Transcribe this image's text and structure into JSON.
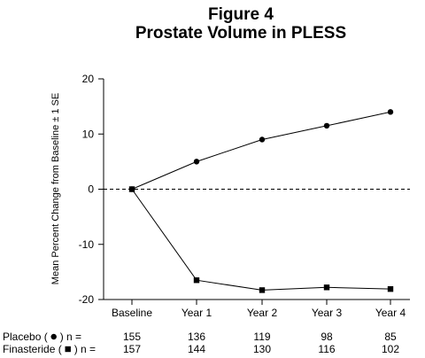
{
  "figure": {
    "title_line1": "Figure 4",
    "title_line2": "Prostate Volume in PLESS"
  },
  "chart_data": {
    "type": "line",
    "title": "Prostate Volume in PLESS",
    "xlabel": "",
    "ylabel": "Mean Percent Change from Baseline  ± 1 SE",
    "categories": [
      "Baseline",
      "Year 1",
      "Year 2",
      "Year 3",
      "Year 4"
    ],
    "ylim": [
      -20,
      20
    ],
    "yticks": [
      20,
      10,
      0,
      -10,
      -20
    ],
    "reference_line": {
      "y": 0,
      "style": "dashed"
    },
    "series": [
      {
        "name": "Placebo",
        "marker": "circle",
        "values": [
          0,
          5,
          9,
          11.5,
          14
        ]
      },
      {
        "name": "Finasteride",
        "marker": "square",
        "values": [
          0,
          -16.5,
          -18.3,
          -17.8,
          -18.1
        ]
      }
    ]
  },
  "n_table": {
    "rows": [
      {
        "label_prefix": "Placebo (",
        "label_suffix": ") n =",
        "marker": "circle",
        "values": [
          "155",
          "136",
          "119",
          "98",
          "85"
        ]
      },
      {
        "label_prefix": "Finasteride (",
        "label_suffix": ") n =",
        "marker": "square",
        "values": [
          "157",
          "144",
          "130",
          "116",
          "102"
        ]
      }
    ]
  },
  "colors": {
    "ink": "#000000",
    "background": "#ffffff"
  }
}
